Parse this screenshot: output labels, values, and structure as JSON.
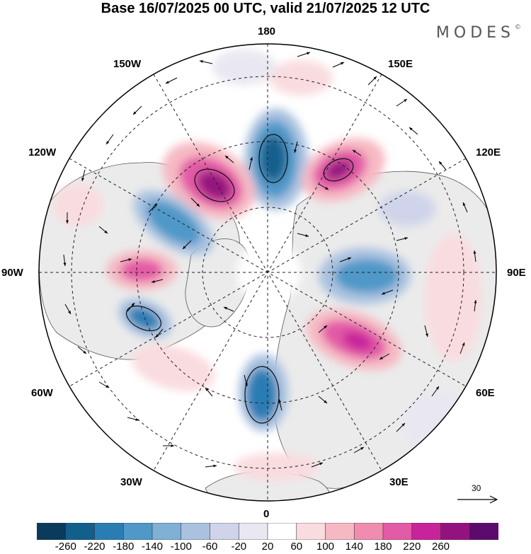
{
  "header": {
    "title": "Base 16/07/2025 00 UTC, valid 21/07/2025 12 UTC",
    "brand": "MODES"
  },
  "map": {
    "projection": "north polar stereographic",
    "longitude_labels": {
      "top": "180",
      "bottom": "0",
      "left": "90W",
      "right": "90E",
      "upper_left_1": "150W",
      "upper_left_2": "120W",
      "lower_left_1": "60W",
      "lower_left_2": "30W",
      "upper_right_1": "150E",
      "upper_right_2": "120E",
      "lower_right_1": "60E",
      "lower_right_2": "30E"
    },
    "anomaly_centers": [
      {
        "sign": "negative",
        "lon": "180",
        "strength": "strong"
      },
      {
        "sign": "positive",
        "lon": "150W",
        "strength": "strong"
      },
      {
        "sign": "positive",
        "lon": "150E",
        "strength": "strong"
      },
      {
        "sign": "negative",
        "lon": "120W",
        "strength": "moderate"
      },
      {
        "sign": "positive",
        "lon": "90W",
        "strength": "moderate"
      },
      {
        "sign": "negative",
        "lon": "60W",
        "strength": "moderate"
      },
      {
        "sign": "negative",
        "lon": "90E",
        "strength": "moderate"
      },
      {
        "sign": "positive",
        "lon": "60E",
        "strength": "strong"
      },
      {
        "sign": "negative",
        "lon": "0",
        "strength": "strong"
      },
      {
        "sign": "positive",
        "lon": "30W",
        "strength": "weak"
      }
    ]
  },
  "vector_legend": {
    "value": "30"
  },
  "colorbar": {
    "labels": [
      "-260",
      "-220",
      "-180",
      "-140",
      "-100",
      "-60",
      "-20",
      "20",
      "60",
      "100",
      "140",
      "180",
      "220",
      "260"
    ],
    "colors": [
      "#0a3a5c",
      "#125f8c",
      "#2a7db4",
      "#4f98c8",
      "#7fb0d6",
      "#aac2e0",
      "#cfd4ea",
      "#e9e7f1",
      "#ffffff",
      "#f9dcdf",
      "#f6b9c3",
      "#f08cb0",
      "#e35aa6",
      "#c8239a",
      "#94127f",
      "#5c0a6e"
    ]
  }
}
